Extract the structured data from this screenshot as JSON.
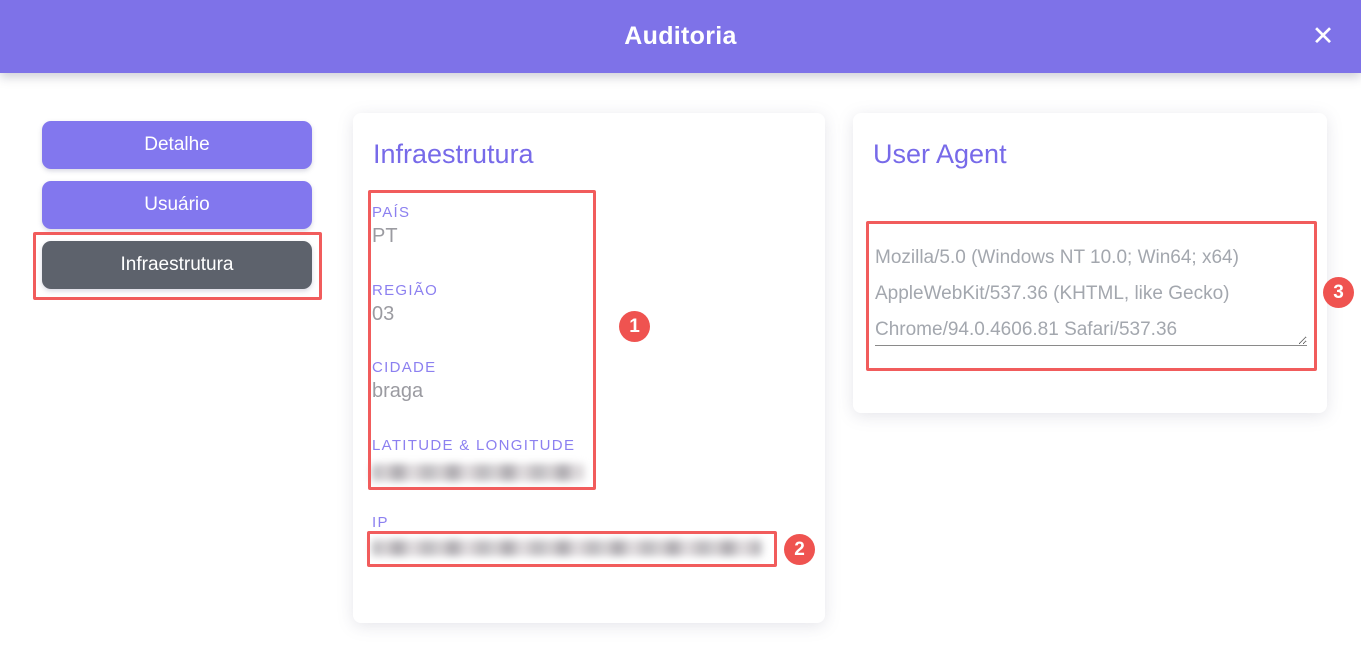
{
  "modal": {
    "title": "Auditoria",
    "close_icon": "✕"
  },
  "sidebar": {
    "buttons": [
      {
        "label": "Detalhe",
        "active": false
      },
      {
        "label": "Usuário",
        "active": false
      },
      {
        "label": "Infraestrutura",
        "active": true
      }
    ]
  },
  "infrastructure_panel": {
    "title": "Infraestrutura",
    "fields": [
      {
        "label": "PAÍS",
        "value": "PT",
        "redacted": false
      },
      {
        "label": "REGIÃO",
        "value": "03",
        "redacted": false
      },
      {
        "label": "CIDADE",
        "value": "braga",
        "redacted": false
      },
      {
        "label": "LATITUDE & LONGITUDE",
        "value": "",
        "redacted": true
      },
      {
        "label": "IP",
        "value": "",
        "redacted": true
      }
    ]
  },
  "user_agent_panel": {
    "title": "User Agent",
    "value": "Mozilla/5.0 (Windows NT 10.0; Win64; x64) AppleWebKit/537.36 (KHTML, like Gecko) Chrome/94.0.4606.81 Safari/537.36"
  },
  "annotations": {
    "badges": [
      "1",
      "2",
      "3"
    ]
  },
  "colors": {
    "header_purple": "#7e72e8",
    "button_purple": "#8277ee",
    "active_button_gray": "#5d626c",
    "heading_purple": "#776ae9",
    "label_purple": "#8c80f0",
    "value_gray": "#9b9ba1",
    "annotation_red": "#f15c5c",
    "badge_red": "#ef5350"
  }
}
